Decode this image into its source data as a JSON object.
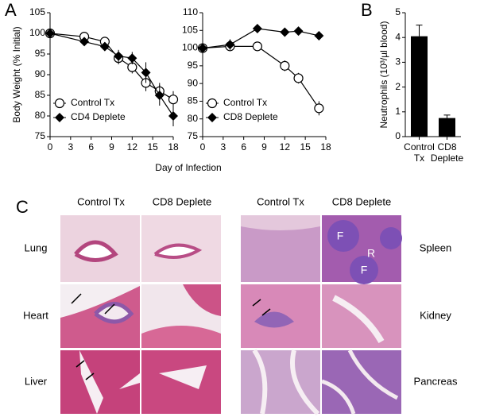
{
  "panel_labels": [
    "A",
    "B",
    "C"
  ],
  "chart_data": [
    {
      "type": "line",
      "ylabel": "Body Weight (% Initial)",
      "xlabel": "Day of Infection",
      "x": [
        0,
        5,
        8,
        10,
        12,
        14,
        16,
        18
      ],
      "series": [
        {
          "name": "Control Tx",
          "color": "#000000",
          "marker": "circle",
          "values": [
            100,
            99.2,
            98,
            94,
            91.8,
            88,
            86,
            84
          ],
          "errors": [
            0,
            0.6,
            0.8,
            1.5,
            1.5,
            2,
            2,
            2
          ]
        },
        {
          "name": "CD4 Deplete",
          "color": "#000000",
          "marker": "diamond",
          "values": [
            100,
            98,
            96.8,
            94.5,
            94,
            90.5,
            85,
            80
          ],
          "errors": [
            0,
            0.6,
            0.8,
            1.5,
            1.5,
            2.5,
            2.5,
            2.5
          ]
        }
      ],
      "xlim": [
        0,
        18
      ],
      "xticks": [
        0,
        3,
        6,
        9,
        12,
        15,
        18
      ],
      "ylim": [
        75,
        105
      ],
      "yticks": [
        75,
        80,
        85,
        90,
        95,
        100,
        105
      ],
      "legend": "lower left"
    },
    {
      "type": "line",
      "x": [
        0,
        4,
        8,
        12,
        14,
        17
      ],
      "series": [
        {
          "name": "Control Tx",
          "color": "#000000",
          "marker": "circle",
          "values": [
            100,
            100.5,
            100.5,
            95,
            91.5,
            83
          ],
          "errors": [
            0,
            1,
            1.2,
            1.5,
            1.5,
            2
          ]
        },
        {
          "name": "CD8 Deplete",
          "color": "#000000",
          "marker": "diamond",
          "values": [
            100,
            101,
            105.5,
            104.5,
            104.8,
            103.5
          ],
          "errors": [
            0,
            1.5,
            0.8,
            1,
            1,
            1
          ]
        }
      ],
      "xlim": [
        0,
        18
      ],
      "xticks": [
        0,
        3,
        6,
        9,
        12,
        15,
        18
      ],
      "ylim": [
        75,
        110
      ],
      "yticks": [
        75,
        80,
        85,
        90,
        95,
        100,
        105,
        110
      ],
      "legend": "lower left"
    },
    {
      "type": "bar",
      "ylabel": "Neutrophils (10³/µl blood)",
      "categories": [
        "Control Tx",
        "CD8 Deplete"
      ],
      "values": [
        4.05,
        0.75
      ],
      "errors": [
        0.45,
        0.12
      ],
      "color": "#000000",
      "ylim": [
        0,
        5
      ],
      "yticks": [
        0,
        1,
        2,
        3,
        4,
        5
      ]
    }
  ],
  "histology": {
    "left": {
      "columns": [
        "Control Tx",
        "CD8 Deplete"
      ],
      "rows": [
        "Lung",
        "Heart",
        "Liver"
      ]
    },
    "right": {
      "columns": [
        "Control Tx",
        "CD8 Deplete"
      ],
      "rows": [
        "Spleen",
        "Kidney",
        "Pancreas"
      ]
    },
    "annotations": [
      "F",
      "R",
      "F"
    ]
  }
}
